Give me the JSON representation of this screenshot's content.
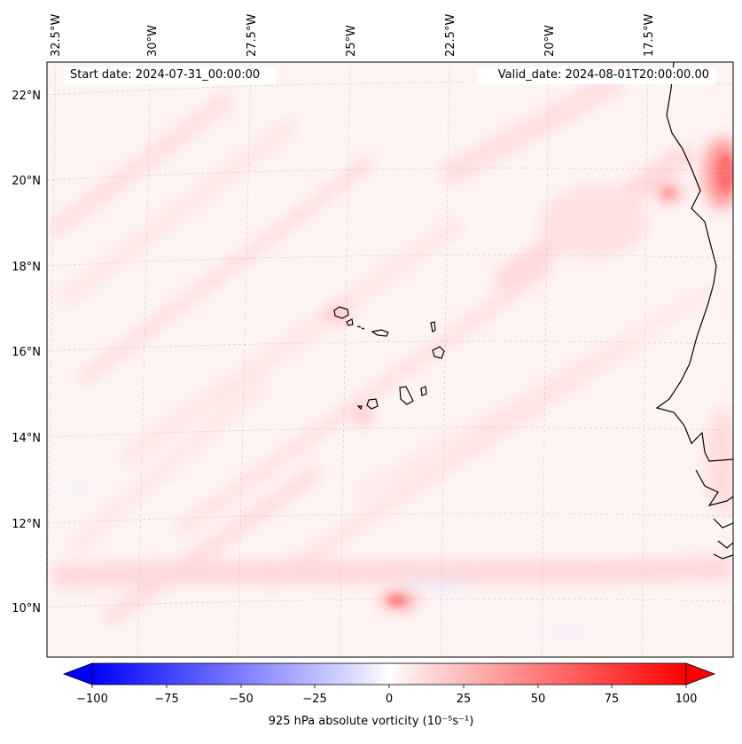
{
  "header": {
    "start_date": "Start date: 2024-07-31_00:00:00",
    "valid_date": "Valid_date: 2024-08-01T20:00:00.00"
  },
  "map": {
    "longitude_labels": [
      "32.5°W",
      "30°W",
      "27.5°W",
      "25°W",
      "22.5°W",
      "20°W",
      "17.5°W"
    ],
    "latitude_labels": [
      "22°N",
      "20°N",
      "18°N",
      "16°N",
      "14°N",
      "12°N",
      "10°N"
    ],
    "field": "925 hPa absolute vorticity",
    "colormap": "bwr",
    "coastline_color": "#000000"
  },
  "colorbar": {
    "title": "925 hPa absolute vorticity (10⁻⁵s⁻¹)",
    "min": -100,
    "max": 100,
    "ticks": [
      "−100",
      "−75",
      "−50",
      "−25",
      "0",
      "25",
      "50",
      "75",
      "100"
    ],
    "extend": "both"
  }
}
